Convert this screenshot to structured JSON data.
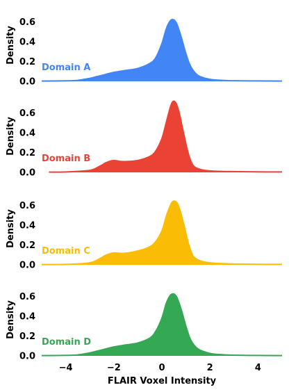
{
  "chart_data": {
    "type": "area",
    "layout": "stacked-panels",
    "xlabel": "FLAIR Voxel Intensity",
    "ylabel": "Density",
    "xlim": [
      -5,
      5
    ],
    "ylim": [
      0,
      0.7
    ],
    "xticks": [
      -4,
      -2,
      0,
      2,
      4
    ],
    "yticks": [
      0.0,
      0.2,
      0.4,
      0.6
    ],
    "x_tick_labels": [
      "−4",
      "−2",
      "0",
      "2",
      "4"
    ],
    "y_tick_labels": [
      "0.0",
      "0.2",
      "0.4",
      "0.6"
    ],
    "grid": false,
    "panels": [
      {
        "name": "Domain A",
        "color": "#4285F4",
        "x": [
          -5.0,
          -4.0,
          -3.5,
          -3.0,
          -2.5,
          -2.0,
          -1.5,
          -1.0,
          -0.5,
          -0.25,
          0.0,
          0.2,
          0.4,
          0.6,
          0.8,
          1.0,
          1.2,
          1.5,
          2.0,
          2.5,
          3.0,
          4.0,
          5.0
        ],
        "values": [
          0.003,
          0.005,
          0.01,
          0.03,
          0.06,
          0.09,
          0.11,
          0.13,
          0.18,
          0.24,
          0.38,
          0.54,
          0.62,
          0.59,
          0.45,
          0.28,
          0.15,
          0.06,
          0.02,
          0.01,
          0.006,
          0.004,
          0.003
        ]
      },
      {
        "name": "Domain B",
        "color": "#EA4335",
        "x": [
          -4.7,
          -4.0,
          -3.0,
          -2.6,
          -2.3,
          -2.0,
          -1.7,
          -1.4,
          -1.0,
          -0.6,
          -0.3,
          0.0,
          0.2,
          0.4,
          0.55,
          0.7,
          0.9,
          1.1,
          1.3,
          1.6,
          2.0,
          2.5,
          3.0,
          4.0,
          5.0
        ],
        "values": [
          0.003,
          0.004,
          0.02,
          0.06,
          0.1,
          0.12,
          0.11,
          0.11,
          0.12,
          0.15,
          0.2,
          0.34,
          0.52,
          0.69,
          0.71,
          0.62,
          0.4,
          0.19,
          0.07,
          0.03,
          0.015,
          0.01,
          0.008,
          0.005,
          0.004
        ]
      },
      {
        "name": "Domain C",
        "color": "#FBBC05",
        "x": [
          -5.0,
          -4.0,
          -3.0,
          -2.6,
          -2.3,
          -2.0,
          -1.7,
          -1.4,
          -1.0,
          -0.6,
          -0.3,
          0.0,
          0.2,
          0.4,
          0.55,
          0.7,
          0.9,
          1.1,
          1.3,
          1.6,
          2.0,
          2.5,
          3.0,
          4.0,
          5.0
        ],
        "values": [
          0.003,
          0.004,
          0.02,
          0.06,
          0.1,
          0.12,
          0.115,
          0.12,
          0.14,
          0.17,
          0.22,
          0.34,
          0.5,
          0.62,
          0.64,
          0.59,
          0.42,
          0.22,
          0.09,
          0.04,
          0.02,
          0.012,
          0.008,
          0.005,
          0.004
        ]
      },
      {
        "name": "Domain D",
        "color": "#34A853",
        "x": [
          -5.0,
          -4.0,
          -3.5,
          -3.0,
          -2.5,
          -2.0,
          -1.5,
          -1.0,
          -0.5,
          -0.25,
          0.0,
          0.2,
          0.4,
          0.6,
          0.8,
          1.0,
          1.2,
          1.5,
          2.0,
          2.5,
          3.0,
          4.0,
          5.0
        ],
        "values": [
          0.003,
          0.005,
          0.01,
          0.03,
          0.06,
          0.09,
          0.11,
          0.13,
          0.18,
          0.25,
          0.38,
          0.54,
          0.62,
          0.6,
          0.47,
          0.3,
          0.16,
          0.07,
          0.025,
          0.012,
          0.007,
          0.004,
          0.003
        ]
      }
    ]
  }
}
